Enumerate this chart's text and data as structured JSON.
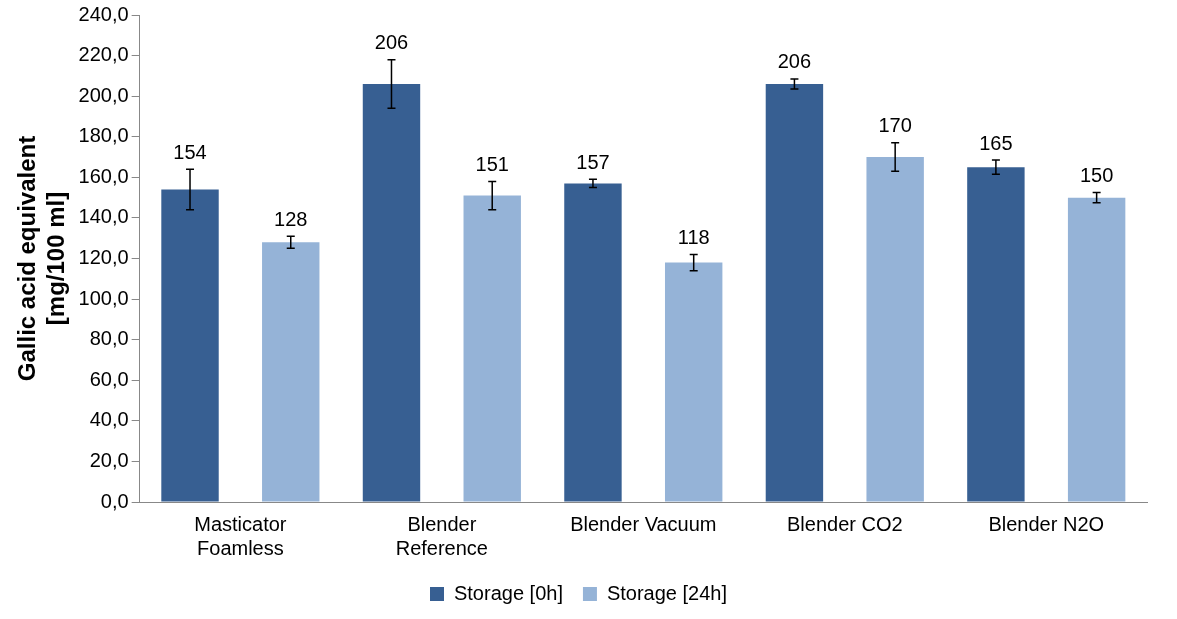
{
  "chart_data": {
    "type": "bar",
    "ylabel": "Gallic acid equivalent\n[mg/100 ml]",
    "categories": [
      "Masticator Foamless",
      "Blender Reference",
      "Blender Vacuum",
      "Blender CO2",
      "Blender N2O"
    ],
    "series": [
      {
        "name": "Storage [0h]",
        "color": "#375f92",
        "values": [
          154,
          206,
          157,
          206,
          165
        ],
        "errors": [
          10,
          12,
          2,
          2.5,
          3.5
        ]
      },
      {
        "name": "Storage [24h]",
        "color": "#95b3d7",
        "values": [
          128,
          151,
          118,
          170,
          150
        ],
        "errors": [
          3,
          7,
          4,
          7,
          2.5
        ]
      }
    ],
    "ylim": [
      0,
      240
    ],
    "yticks": [
      {
        "value": 0,
        "label": "0,0"
      },
      {
        "value": 20,
        "label": "20,0"
      },
      {
        "value": 40,
        "label": "40,0"
      },
      {
        "value": 60,
        "label": "60,0"
      },
      {
        "value": 80,
        "label": "80,0"
      },
      {
        "value": 100,
        "label": "100,0"
      },
      {
        "value": 120,
        "label": "120,0"
      },
      {
        "value": 140,
        "label": "140,0"
      },
      {
        "value": 160,
        "label": "160,0"
      },
      {
        "value": 180,
        "label": "180,0"
      },
      {
        "value": 200,
        "label": "200,0"
      },
      {
        "value": 220,
        "label": "220,0"
      },
      {
        "value": 240,
        "label": "240,0"
      }
    ],
    "data_labels": true,
    "grid": false,
    "legend": "bottom"
  }
}
